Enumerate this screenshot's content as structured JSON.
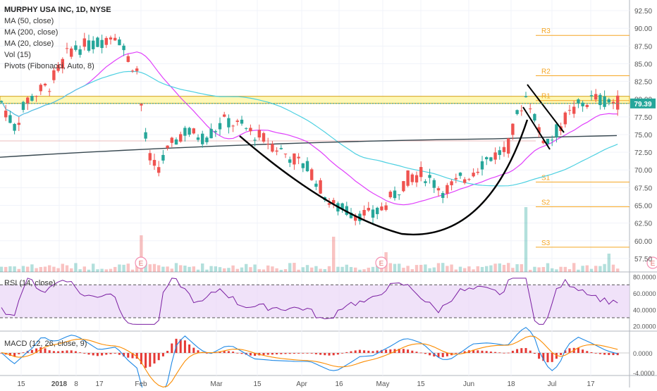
{
  "symbol_header": "MURPHY USA INC, 1D, NYSE",
  "indicators": [
    "MA (50, close)",
    "MA (200, close)",
    "MA (20, close)",
    "Vol (15)",
    "Pivots (Fibonacci, Auto, 8)"
  ],
  "rsi_label": "RSI (14, close)",
  "macd_label": "MACD (12, 26, close, 9)",
  "last_price_label": "79.39",
  "earnings_marker": "E",
  "colors": {
    "up": "#26a69a",
    "down": "#ef5350",
    "ma20": "#e040fb",
    "ma50": "#4dd0e1",
    "ma200": "#37474f",
    "pivot": "#f5a623",
    "resistance_band": "#fff59d",
    "rsi_line": "#7b1fa2",
    "rsi_band": "#e9d5f7",
    "macd_line": "#1e88e5",
    "signal_line": "#fb8c00",
    "hist": "#e53935"
  },
  "chart_data": {
    "type": "candlestick",
    "title": "MURPHY USA INC, 1D, NYSE",
    "price_axis_ticks": [
      "92.50",
      "90.00",
      "87.50",
      "85.00",
      "82.50",
      "80.00",
      "77.50",
      "75.00",
      "72.50",
      "70.00",
      "67.50",
      "65.00",
      "62.50",
      "60.00",
      "57.50"
    ],
    "ylim": [
      55.6,
      93.6
    ],
    "x_tick_labels": [
      "15",
      "2018",
      "8",
      "17",
      "Feb",
      "Mar",
      "15",
      "Apr",
      "16",
      "May",
      "15",
      "Jun",
      "18",
      "Jul",
      "17"
    ],
    "pivots": [
      {
        "label": "R3",
        "value": 89.0
      },
      {
        "label": "R2",
        "value": 83.3
      },
      {
        "label": "R1",
        "value": 79.8
      },
      {
        "label": "S1",
        "value": 68.3
      },
      {
        "label": "S2",
        "value": 64.8
      },
      {
        "label": "S3",
        "value": 59.1
      }
    ],
    "resistance_zone": [
      79.4,
      80.4
    ],
    "last_price": 79.39,
    "rsi_axis_ticks": [
      "80.0000",
      "60.0000",
      "40.0000",
      "20.0000"
    ],
    "rsi_levels": [
      70,
      30
    ],
    "macd_axis_ticks": [
      "0.0000",
      "-4.0000"
    ],
    "annotations": [
      "cup-and-handle curve drawing"
    ]
  }
}
